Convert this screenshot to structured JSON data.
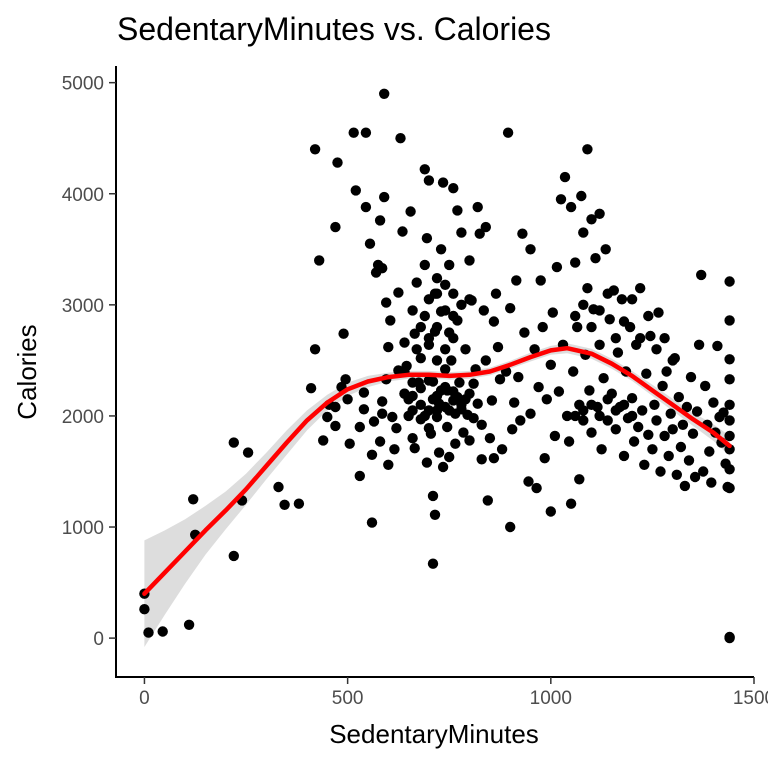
{
  "chart_data": {
    "type": "scatter",
    "title": "SedentaryMinutes vs. Calories",
    "xlabel": "SedentaryMinutes",
    "ylabel": "Calories",
    "xlim": [
      -70,
      1500
    ],
    "ylim": [
      -350,
      5150
    ],
    "x_ticks": [
      0,
      500,
      1000,
      1500
    ],
    "y_ticks": [
      0,
      1000,
      2000,
      3000,
      4000,
      5000
    ],
    "grid": false,
    "point_color": "#000000",
    "smooth_color": "#ff0000",
    "band_color": "#d9d9d9",
    "points": [
      [
        0,
        400
      ],
      [
        0,
        260
      ],
      [
        10,
        50
      ],
      [
        45,
        60
      ],
      [
        110,
        120
      ],
      [
        120,
        1250
      ],
      [
        125,
        930
      ],
      [
        220,
        740
      ],
      [
        220,
        1760
      ],
      [
        240,
        1240
      ],
      [
        255,
        1670
      ],
      [
        330,
        1360
      ],
      [
        345,
        1200
      ],
      [
        380,
        1210
      ],
      [
        420,
        4400
      ],
      [
        430,
        3400
      ],
      [
        420,
        2600
      ],
      [
        410,
        2250
      ],
      [
        440,
        1780
      ],
      [
        450,
        1990
      ],
      [
        455,
        2100
      ],
      [
        470,
        1910
      ],
      [
        470,
        2080
      ],
      [
        470,
        3700
      ],
      [
        475,
        4280
      ],
      [
        490,
        2740
      ],
      [
        485,
        2260
      ],
      [
        495,
        2330
      ],
      [
        505,
        1750
      ],
      [
        500,
        2150
      ],
      [
        515,
        4550
      ],
      [
        520,
        4030
      ],
      [
        530,
        1460
      ],
      [
        530,
        1900
      ],
      [
        540,
        2060
      ],
      [
        540,
        2210
      ],
      [
        545,
        4550
      ],
      [
        545,
        3880
      ],
      [
        555,
        3550
      ],
      [
        560,
        1040
      ],
      [
        560,
        1650
      ],
      [
        565,
        1950
      ],
      [
        570,
        3290
      ],
      [
        575,
        3360
      ],
      [
        580,
        3760
      ],
      [
        580,
        1770
      ],
      [
        585,
        2020
      ],
      [
        585,
        2130
      ],
      [
        585,
        3330
      ],
      [
        590,
        4900
      ],
      [
        590,
        3970
      ],
      [
        595,
        3020
      ],
      [
        595,
        2330
      ],
      [
        600,
        1560
      ],
      [
        600,
        2620
      ],
      [
        605,
        2860
      ],
      [
        610,
        1990
      ],
      [
        615,
        1700
      ],
      [
        620,
        1890
      ],
      [
        625,
        2410
      ],
      [
        625,
        3110
      ],
      [
        630,
        4500
      ],
      [
        635,
        3660
      ],
      [
        640,
        2200
      ],
      [
        640,
        2660
      ],
      [
        645,
        2450
      ],
      [
        650,
        2000
      ],
      [
        655,
        3840
      ],
      [
        660,
        1800
      ],
      [
        660,
        2050
      ],
      [
        665,
        1710
      ],
      [
        665,
        2740
      ],
      [
        670,
        3200
      ],
      [
        675,
        2300
      ],
      [
        680,
        2520
      ],
      [
        680,
        1970
      ],
      [
        690,
        4220
      ],
      [
        690,
        3360
      ],
      [
        690,
        2900
      ],
      [
        695,
        3600
      ],
      [
        695,
        1580
      ],
      [
        700,
        1890
      ],
      [
        700,
        2640
      ],
      [
        700,
        4120
      ],
      [
        705,
        1840
      ],
      [
        710,
        1280
      ],
      [
        710,
        2310
      ],
      [
        710,
        670
      ],
      [
        715,
        3100
      ],
      [
        715,
        2760
      ],
      [
        715,
        1110
      ],
      [
        720,
        3240
      ],
      [
        720,
        2050
      ],
      [
        725,
        1670
      ],
      [
        725,
        2110
      ],
      [
        730,
        3500
      ],
      [
        730,
        2940
      ],
      [
        735,
        4100
      ],
      [
        735,
        1540
      ],
      [
        740,
        2420
      ],
      [
        745,
        2230
      ],
      [
        745,
        1900
      ],
      [
        750,
        3360
      ],
      [
        750,
        2750
      ],
      [
        750,
        1630
      ],
      [
        755,
        2500
      ],
      [
        760,
        4050
      ],
      [
        760,
        3100
      ],
      [
        765,
        2020
      ],
      [
        765,
        1750
      ],
      [
        770,
        3850
      ],
      [
        770,
        2860
      ],
      [
        775,
        2300
      ],
      [
        780,
        3650
      ],
      [
        780,
        2100
      ],
      [
        785,
        1850
      ],
      [
        790,
        2600
      ],
      [
        795,
        2010
      ],
      [
        800,
        3400
      ],
      [
        800,
        1780
      ],
      [
        805,
        3040
      ],
      [
        810,
        2290
      ],
      [
        815,
        2420
      ],
      [
        820,
        3880
      ],
      [
        820,
        2110
      ],
      [
        825,
        3640
      ],
      [
        830,
        1610
      ],
      [
        830,
        1920
      ],
      [
        835,
        2950
      ],
      [
        840,
        3700
      ],
      [
        840,
        2500
      ],
      [
        845,
        1240
      ],
      [
        850,
        1800
      ],
      [
        855,
        2140
      ],
      [
        860,
        2850
      ],
      [
        860,
        1620
      ],
      [
        865,
        3100
      ],
      [
        870,
        2620
      ],
      [
        875,
        2330
      ],
      [
        880,
        1700
      ],
      [
        890,
        2400
      ],
      [
        895,
        4550
      ],
      [
        900,
        2970
      ],
      [
        900,
        1000
      ],
      [
        905,
        1880
      ],
      [
        910,
        2120
      ],
      [
        915,
        3220
      ],
      [
        920,
        2350
      ],
      [
        925,
        1960
      ],
      [
        930,
        3640
      ],
      [
        935,
        2750
      ],
      [
        945,
        1410
      ],
      [
        950,
        3500
      ],
      [
        950,
        2020
      ],
      [
        960,
        2600
      ],
      [
        965,
        1350
      ],
      [
        970,
        2260
      ],
      [
        975,
        3220
      ],
      [
        980,
        2800
      ],
      [
        985,
        1620
      ],
      [
        990,
        2150
      ],
      [
        1000,
        1140
      ],
      [
        1000,
        2460
      ],
      [
        1005,
        2930
      ],
      [
        1010,
        1820
      ],
      [
        1015,
        3340
      ],
      [
        1020,
        2220
      ],
      [
        1025,
        3950
      ],
      [
        1030,
        2640
      ],
      [
        1035,
        4150
      ],
      [
        1040,
        2000
      ],
      [
        1045,
        1770
      ],
      [
        1050,
        3880
      ],
      [
        1050,
        1210
      ],
      [
        1055,
        2400
      ],
      [
        1060,
        3380
      ],
      [
        1065,
        2800
      ],
      [
        1070,
        1430
      ],
      [
        1070,
        2100
      ],
      [
        1075,
        3980
      ],
      [
        1080,
        3650
      ],
      [
        1080,
        1960
      ],
      [
        1085,
        2550
      ],
      [
        1090,
        4400
      ],
      [
        1090,
        3150
      ],
      [
        1095,
        2230
      ],
      [
        1100,
        3770
      ],
      [
        1100,
        1850
      ],
      [
        1105,
        2960
      ],
      [
        1110,
        3420
      ],
      [
        1115,
        2080
      ],
      [
        1120,
        2640
      ],
      [
        1120,
        3820
      ],
      [
        1125,
        1700
      ],
      [
        1130,
        2340
      ],
      [
        1135,
        3500
      ],
      [
        1140,
        1960
      ],
      [
        1145,
        2870
      ],
      [
        1150,
        2200
      ],
      [
        1155,
        3130
      ],
      [
        1160,
        1880
      ],
      [
        1165,
        2570
      ],
      [
        1170,
        2080
      ],
      [
        1175,
        3050
      ],
      [
        1180,
        1640
      ],
      [
        1185,
        2400
      ],
      [
        1190,
        1980
      ],
      [
        1195,
        2800
      ],
      [
        1200,
        2160
      ],
      [
        1205,
        1770
      ],
      [
        1210,
        2640
      ],
      [
        1215,
        1900
      ],
      [
        1220,
        3150
      ],
      [
        1225,
        2050
      ],
      [
        1230,
        1560
      ],
      [
        1235,
        2380
      ],
      [
        1240,
        1830
      ],
      [
        1245,
        2720
      ],
      [
        1250,
        1700
      ],
      [
        1255,
        2100
      ],
      [
        1260,
        1960
      ],
      [
        1265,
        2930
      ],
      [
        1270,
        1500
      ],
      [
        1275,
        2270
      ],
      [
        1280,
        1820
      ],
      [
        1285,
        2400
      ],
      [
        1290,
        1640
      ],
      [
        1295,
        2020
      ],
      [
        1300,
        1880
      ],
      [
        1305,
        2520
      ],
      [
        1310,
        1470
      ],
      [
        1315,
        2170
      ],
      [
        1320,
        1720
      ],
      [
        1325,
        1920
      ],
      [
        1330,
        1370
      ],
      [
        1335,
        2080
      ],
      [
        1340,
        1600
      ],
      [
        1345,
        2350
      ],
      [
        1350,
        1840
      ],
      [
        1355,
        1450
      ],
      [
        1360,
        2040
      ],
      [
        1365,
        2640
      ],
      [
        1370,
        3270
      ],
      [
        1375,
        1500
      ],
      [
        1380,
        2270
      ],
      [
        1385,
        1920
      ],
      [
        1390,
        1680
      ],
      [
        1395,
        1400
      ],
      [
        1400,
        2120
      ],
      [
        1405,
        1850
      ],
      [
        1410,
        2630
      ],
      [
        1415,
        1990
      ],
      [
        1420,
        1760
      ],
      [
        1425,
        2030
      ],
      [
        1430,
        1570
      ],
      [
        1435,
        1360
      ],
      [
        1440,
        3210
      ],
      [
        1440,
        2860
      ],
      [
        1440,
        2510
      ],
      [
        1440,
        2330
      ],
      [
        1440,
        2100
      ],
      [
        1440,
        1960
      ],
      [
        1440,
        1820
      ],
      [
        1440,
        1700
      ],
      [
        1440,
        1520
      ],
      [
        1440,
        1350
      ],
      [
        1440,
        10
      ],
      [
        1440,
        0
      ],
      [
        640,
        2200
      ],
      [
        660,
        2180
      ],
      [
        680,
        2250
      ],
      [
        700,
        2320
      ],
      [
        720,
        2180
      ],
      [
        740,
        2260
      ],
      [
        760,
        2220
      ],
      [
        700,
        2050
      ],
      [
        720,
        1990
      ],
      [
        740,
        2080
      ],
      [
        760,
        2140
      ],
      [
        680,
        2100
      ],
      [
        660,
        2300
      ],
      [
        650,
        2150
      ],
      [
        790,
        2150
      ],
      [
        800,
        2200
      ],
      [
        810,
        1980
      ],
      [
        690,
        2000
      ],
      [
        710,
        2150
      ],
      [
        730,
        2230
      ],
      [
        750,
        2050
      ],
      [
        770,
        2170
      ],
      [
        780,
        2060
      ],
      [
        640,
        2400
      ],
      [
        670,
        2600
      ],
      [
        700,
        2700
      ],
      [
        720,
        2800
      ],
      [
        740,
        2950
      ],
      [
        760,
        2900
      ],
      [
        780,
        3000
      ],
      [
        800,
        3050
      ],
      [
        720,
        2500
      ],
      [
        740,
        2600
      ],
      [
        760,
        2700
      ],
      [
        680,
        2800
      ],
      [
        660,
        2950
      ],
      [
        700,
        3050
      ],
      [
        720,
        3100
      ],
      [
        740,
        3180
      ],
      [
        1060,
        2000
      ],
      [
        1080,
        2050
      ],
      [
        1100,
        2100
      ],
      [
        1120,
        2000
      ],
      [
        1140,
        2150
      ],
      [
        1160,
        2050
      ],
      [
        1180,
        2100
      ],
      [
        1200,
        2000
      ],
      [
        1060,
        2900
      ],
      [
        1080,
        3000
      ],
      [
        1100,
        2800
      ],
      [
        1120,
        2950
      ],
      [
        1140,
        3100
      ],
      [
        1160,
        2700
      ],
      [
        1180,
        2850
      ],
      [
        1200,
        3050
      ],
      [
        1220,
        2700
      ],
      [
        1240,
        2900
      ],
      [
        1260,
        2600
      ],
      [
        1280,
        2700
      ],
      [
        1300,
        2500
      ]
    ],
    "smooth": [
      [
        0,
        400
      ],
      [
        50,
        590
      ],
      [
        100,
        780
      ],
      [
        150,
        970
      ],
      [
        200,
        1150
      ],
      [
        250,
        1340
      ],
      [
        300,
        1550
      ],
      [
        350,
        1760
      ],
      [
        400,
        1960
      ],
      [
        450,
        2120
      ],
      [
        500,
        2240
      ],
      [
        550,
        2310
      ],
      [
        600,
        2350
      ],
      [
        650,
        2370
      ],
      [
        700,
        2370
      ],
      [
        750,
        2360
      ],
      [
        800,
        2370
      ],
      [
        850,
        2400
      ],
      [
        900,
        2460
      ],
      [
        950,
        2530
      ],
      [
        1000,
        2590
      ],
      [
        1040,
        2610
      ],
      [
        1100,
        2560
      ],
      [
        1150,
        2470
      ],
      [
        1200,
        2360
      ],
      [
        1250,
        2230
      ],
      [
        1300,
        2100
      ],
      [
        1350,
        1970
      ],
      [
        1400,
        1850
      ],
      [
        1440,
        1730
      ]
    ],
    "band_halfwidth": [
      [
        0,
        480
      ],
      [
        50,
        380
      ],
      [
        100,
        290
      ],
      [
        150,
        220
      ],
      [
        200,
        170
      ],
      [
        250,
        140
      ],
      [
        300,
        120
      ],
      [
        350,
        110
      ],
      [
        400,
        90
      ],
      [
        450,
        70
      ],
      [
        500,
        60
      ],
      [
        550,
        50
      ],
      [
        600,
        40
      ],
      [
        650,
        35
      ],
      [
        700,
        35
      ],
      [
        750,
        35
      ],
      [
        800,
        35
      ],
      [
        850,
        35
      ],
      [
        900,
        35
      ],
      [
        950,
        40
      ],
      [
        1000,
        40
      ],
      [
        1040,
        45
      ],
      [
        1100,
        45
      ],
      [
        1150,
        45
      ],
      [
        1200,
        45
      ],
      [
        1250,
        50
      ],
      [
        1300,
        55
      ],
      [
        1350,
        60
      ],
      [
        1400,
        75
      ],
      [
        1440,
        90
      ]
    ]
  }
}
